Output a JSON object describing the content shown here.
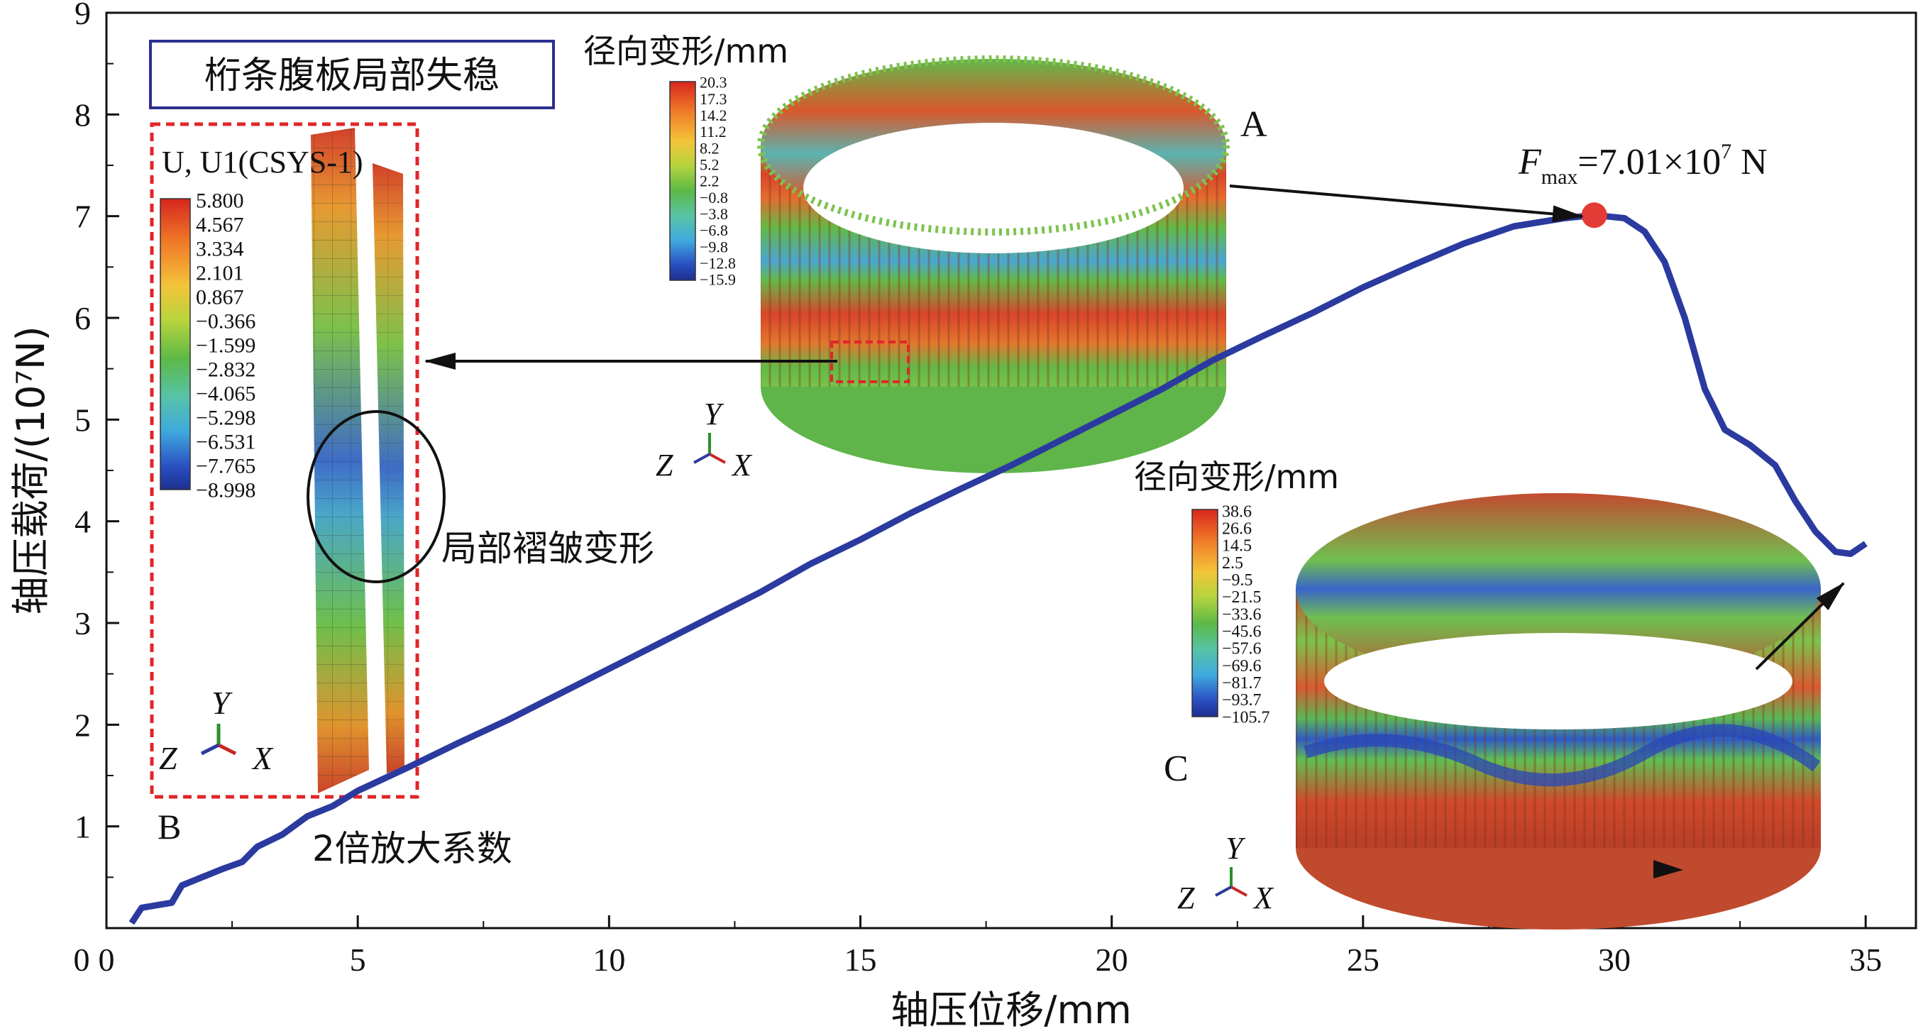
{
  "chart_data": {
    "type": "line",
    "xlabel": "轴压位移/mm",
    "ylabel": "轴压载荷/(10⁷N)",
    "xlim": [
      0,
      36
    ],
    "ylim": [
      0,
      9
    ],
    "xticks": [
      "0",
      "5",
      "10",
      "15",
      "20",
      "25",
      "30",
      "35"
    ],
    "yticks": [
      "9",
      "8",
      "7",
      "6",
      "5",
      "4",
      "3",
      "2",
      "1"
    ],
    "series": [
      {
        "color": "#2b3a9f",
        "points": [
          [
            0.5,
            0.05
          ],
          [
            0.7,
            0.2
          ],
          [
            1.3,
            0.25
          ],
          [
            1.5,
            0.42
          ],
          [
            1.9,
            0.5
          ],
          [
            2.3,
            0.58
          ],
          [
            2.7,
            0.65
          ],
          [
            3.0,
            0.8
          ],
          [
            3.5,
            0.92
          ],
          [
            4.0,
            1.1
          ],
          [
            4.5,
            1.2
          ],
          [
            5.0,
            1.35
          ],
          [
            6.0,
            1.58
          ],
          [
            7.0,
            1.82
          ],
          [
            8.0,
            2.05
          ],
          [
            9.0,
            2.3
          ],
          [
            10.0,
            2.55
          ],
          [
            11.0,
            2.8
          ],
          [
            12.0,
            3.05
          ],
          [
            13.0,
            3.3
          ],
          [
            14.0,
            3.58
          ],
          [
            15.0,
            3.82
          ],
          [
            16.0,
            4.08
          ],
          [
            17.0,
            4.32
          ],
          [
            18.0,
            4.55
          ],
          [
            19.0,
            4.8
          ],
          [
            20.0,
            5.05
          ],
          [
            21.0,
            5.3
          ],
          [
            22.0,
            5.58
          ],
          [
            23.0,
            5.82
          ],
          [
            24.0,
            6.05
          ],
          [
            25.0,
            6.3
          ],
          [
            26.0,
            6.52
          ],
          [
            27.0,
            6.73
          ],
          [
            28.0,
            6.9
          ],
          [
            29.0,
            6.98
          ],
          [
            29.6,
            7.01
          ],
          [
            30.2,
            6.98
          ],
          [
            30.6,
            6.85
          ],
          [
            31.0,
            6.55
          ],
          [
            31.4,
            6.0
          ],
          [
            31.8,
            5.3
          ],
          [
            32.2,
            4.9
          ],
          [
            32.7,
            4.75
          ],
          [
            33.2,
            4.55
          ],
          [
            33.6,
            4.2
          ],
          [
            34.0,
            3.9
          ],
          [
            34.4,
            3.7
          ],
          [
            34.7,
            3.68
          ],
          [
            35.0,
            3.78
          ]
        ]
      }
    ],
    "peak": {
      "x": 29.6,
      "y": 7.01,
      "color": "#e53b36"
    },
    "annotations": {
      "fmax_prefix": "F",
      "fmax_sub": "max",
      "fmax_value": "=7.01×10",
      "fmax_exp": "7",
      "fmax_unit": " N",
      "label_a": "A",
      "label_b": "B",
      "label_c": "C",
      "title_box": "桁条腹板局部失稳",
      "inset_b_title": "U, U1(CSYS-1)",
      "wrinkle_label": "局部褶皱变形",
      "scale_label": "2倍放大系数",
      "cb_a_title": "径向变形/mm",
      "cb_c_title": "径向变形/mm"
    },
    "colorbar_a": [
      "20.3",
      "17.3",
      "14.2",
      "11.2",
      "8.2",
      "5.2",
      "2.2",
      "−0.8",
      "−3.8",
      "−6.8",
      "−9.8",
      "−12.8",
      "−15.9"
    ],
    "colorbar_b": [
      "5.800",
      "4.567",
      "3.334",
      "2.101",
      "0.867",
      "−0.366",
      "−1.599",
      "−2.832",
      "−4.065",
      "−5.298",
      "−6.531",
      "−7.765",
      "−8.998"
    ],
    "colorbar_c": [
      "38.6",
      "26.6",
      "14.5",
      "2.5",
      "−9.5",
      "−21.5",
      "−33.6",
      "−45.6",
      "−57.6",
      "−69.6",
      "−81.7",
      "−93.7",
      "−105.7"
    ],
    "triad": {
      "y": "Y",
      "z": "Z",
      "x": "X"
    },
    "colors": {
      "curve": "#2b3a9f",
      "marker": "#e53b36",
      "dashed_box": "#e0262a",
      "title_box_border": "#2d2f8f",
      "ring_red": "#d9442a",
      "ring_green": "#55b642",
      "ring_blue": "#3a56c8"
    }
  }
}
